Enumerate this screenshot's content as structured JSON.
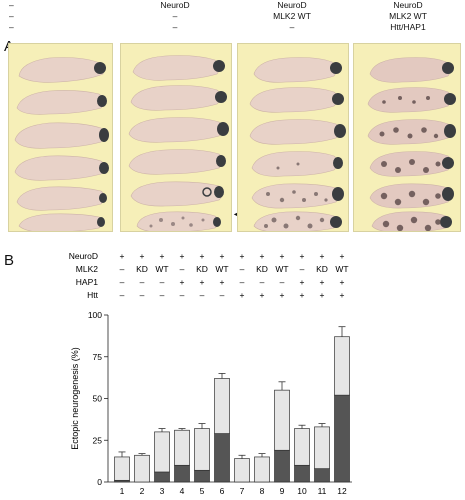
{
  "panel_a": {
    "letter": "A",
    "columns": [
      {
        "lines": [
          "–",
          "–",
          "–"
        ]
      },
      {
        "lines": [
          "NeuroD",
          "–",
          "–"
        ]
      },
      {
        "lines": [
          "NeuroD",
          "MLK2 WT",
          "–"
        ]
      },
      {
        "lines": [
          "NeuroD",
          "MLK2 WT",
          "Htt/HAP1"
        ]
      }
    ],
    "arrow_glyph": "◄"
  },
  "panel_b": {
    "letter": "B",
    "row_labels": [
      "NeuroD",
      "MLK2",
      "HAP1",
      "Htt"
    ],
    "matrix": [
      [
        "+",
        "+",
        "+",
        "+",
        "+",
        "+",
        "+",
        "+",
        "+",
        "+",
        "+",
        "+"
      ],
      [
        "–",
        "KD",
        "WT",
        "–",
        "KD",
        "WT",
        "–",
        "KD",
        "WT",
        "–",
        "KD",
        "WT"
      ],
      [
        "–",
        "–",
        "–",
        "+",
        "+",
        "+",
        "–",
        "–",
        "–",
        "+",
        "+",
        "+"
      ],
      [
        "–",
        "–",
        "–",
        "–",
        "–",
        "–",
        "+",
        "+",
        "+",
        "+",
        "+",
        "+"
      ]
    ]
  },
  "chart_data": {
    "type": "bar",
    "stacked": true,
    "ylabel": "Ectopic neurogenesis (%)",
    "ylim": [
      0,
      100
    ],
    "yticks": [
      "0",
      "25",
      "50",
      "75",
      "100"
    ],
    "categories": [
      "1",
      "2",
      "3",
      "4",
      "5",
      "6",
      "7",
      "8",
      "9",
      "10",
      "11",
      "12"
    ],
    "series": [
      {
        "color": "#555555",
        "values": [
          1,
          0,
          6,
          10,
          7,
          29,
          0,
          0,
          19,
          10,
          8,
          52
        ]
      },
      {
        "color": "#e6e6e6",
        "values": [
          14,
          16,
          24,
          21,
          25,
          33,
          14,
          15,
          36,
          22,
          25,
          35
        ]
      }
    ],
    "errors": [
      3,
      1,
      2,
      1,
      3,
      3,
      2,
      2,
      5,
      2,
      2,
      6
    ]
  }
}
